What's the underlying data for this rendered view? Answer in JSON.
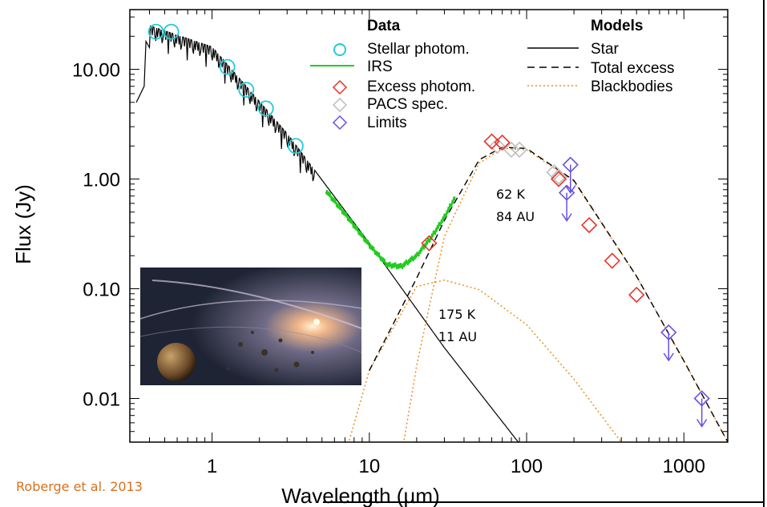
{
  "chart_data": {
    "type": "scatter",
    "xlabel": "Wavelength (µm)",
    "ylabel": "Flux (Jy)",
    "x_scale": "log",
    "y_scale": "log",
    "xlim": [
      0.3,
      1900
    ],
    "ylim": [
      0.004,
      35
    ],
    "x_ticks": [
      1,
      10,
      100,
      1000
    ],
    "x_tick_labels": [
      "1",
      "10",
      "100",
      "1000"
    ],
    "y_ticks": [
      0.01,
      0.1,
      1,
      10
    ],
    "y_tick_labels": [
      "0.01",
      "0.10",
      "1.00",
      "10.00"
    ],
    "grid": false,
    "legend": {
      "data_title": "Data",
      "models_title": "Models",
      "data_entries": [
        "Stellar photom.",
        "IRS",
        "Excess photom.",
        "PACS spec.",
        "Limits"
      ],
      "model_entries": [
        "Star",
        "Total excess",
        "Blackbodies"
      ]
    },
    "annotations": {
      "cold_temp": "62 K",
      "cold_dist": "84 AU",
      "warm_temp": "175 K",
      "warm_dist": "11 AU"
    },
    "stellar_photometry": {
      "x": [
        0.44,
        0.55,
        1.25,
        1.65,
        2.2,
        3.4
      ],
      "y": [
        22,
        22,
        10.5,
        6.5,
        4.4,
        2.0
      ]
    },
    "excess_photometry": {
      "x": [
        24,
        60,
        70,
        160,
        250,
        350,
        500
      ],
      "y": [
        0.26,
        2.2,
        2.15,
        1.0,
        0.38,
        0.18,
        0.088
      ]
    },
    "pacs_spectroscopy": {
      "x": [
        65,
        80,
        90,
        150,
        160
      ],
      "y": [
        2.0,
        1.85,
        1.85,
        1.15,
        1.05
      ]
    },
    "limits": {
      "x": [
        180,
        190,
        800,
        1300
      ],
      "y": [
        0.75,
        1.35,
        0.04,
        0.01
      ]
    },
    "star_model": {
      "x": [
        0.4,
        1,
        3,
        10,
        30,
        100
      ],
      "y": [
        25,
        16,
        2.6,
        0.26,
        0.029,
        0.0032
      ]
    },
    "warm_blackbody": {
      "x": [
        7,
        10,
        20,
        30,
        50,
        100,
        200,
        400
      ],
      "y": [
        0.003,
        0.018,
        0.105,
        0.12,
        0.098,
        0.047,
        0.015,
        0.004
      ]
    },
    "cold_blackbody": {
      "x": [
        16,
        20,
        30,
        50,
        70,
        100,
        200,
        500,
        1000,
        2000
      ],
      "y": [
        0.003,
        0.02,
        0.3,
        1.4,
        1.9,
        1.85,
        0.95,
        0.13,
        0.022,
        0.0035
      ]
    },
    "total_excess": {
      "x": [
        10,
        20,
        30,
        50,
        70,
        100,
        200,
        500,
        1000,
        2000
      ],
      "y": [
        0.018,
        0.125,
        0.42,
        1.5,
        1.95,
        1.9,
        0.97,
        0.13,
        0.022,
        0.0035
      ]
    },
    "irs": {
      "x": [
        5.3,
        7,
        10,
        13,
        16,
        20,
        25,
        30,
        35
      ],
      "y": [
        0.78,
        0.48,
        0.25,
        0.165,
        0.16,
        0.2,
        0.3,
        0.45,
        0.68
      ]
    }
  },
  "credit": "Roberge et al. 2013",
  "colors": {
    "stellar": "#22cbd6",
    "irs": "#20cc20",
    "excess": "#e83228",
    "pacs": "#bdbdbd",
    "limits": "#6650e6",
    "blackbody": "#e89020",
    "axis": "#000000"
  },
  "inset_image": "artist-illustration-debris-disk"
}
